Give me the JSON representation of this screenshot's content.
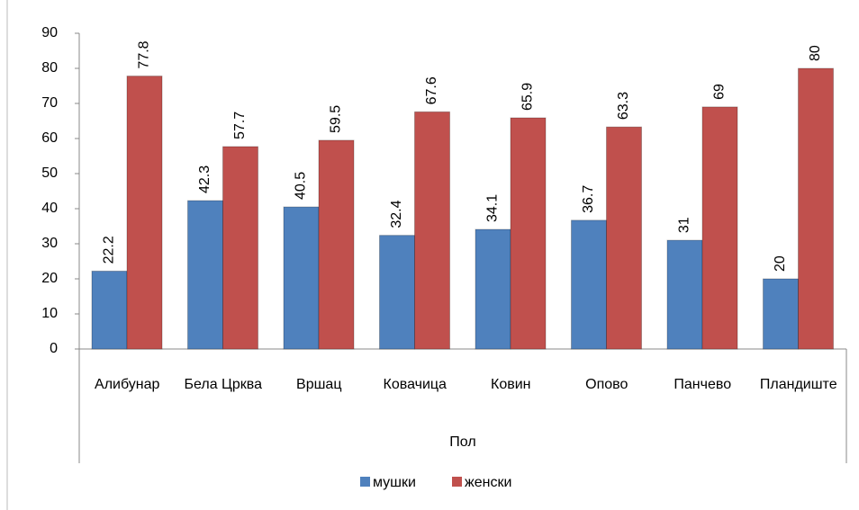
{
  "chart_data": {
    "type": "bar",
    "categories": [
      "Алибунар",
      "Бела Црква",
      "Вршац",
      "Ковачица",
      "Ковин",
      "Опово",
      "Панчево",
      "Пландиште"
    ],
    "x_label": "Пол",
    "series": [
      {
        "name": "мушки",
        "color": "#4f81bd",
        "values": [
          22.2,
          42.3,
          40.5,
          32.4,
          34.1,
          36.7,
          31,
          20
        ]
      },
      {
        "name": "женски",
        "color": "#c0504d",
        "values": [
          77.8,
          57.7,
          59.5,
          67.6,
          65.9,
          63.3,
          69,
          80
        ]
      }
    ],
    "ylim": [
      0,
      90
    ],
    "yticks": [
      0,
      10,
      20,
      30,
      40,
      50,
      60,
      70,
      80,
      90
    ],
    "grid": false,
    "legend": "bottom"
  }
}
